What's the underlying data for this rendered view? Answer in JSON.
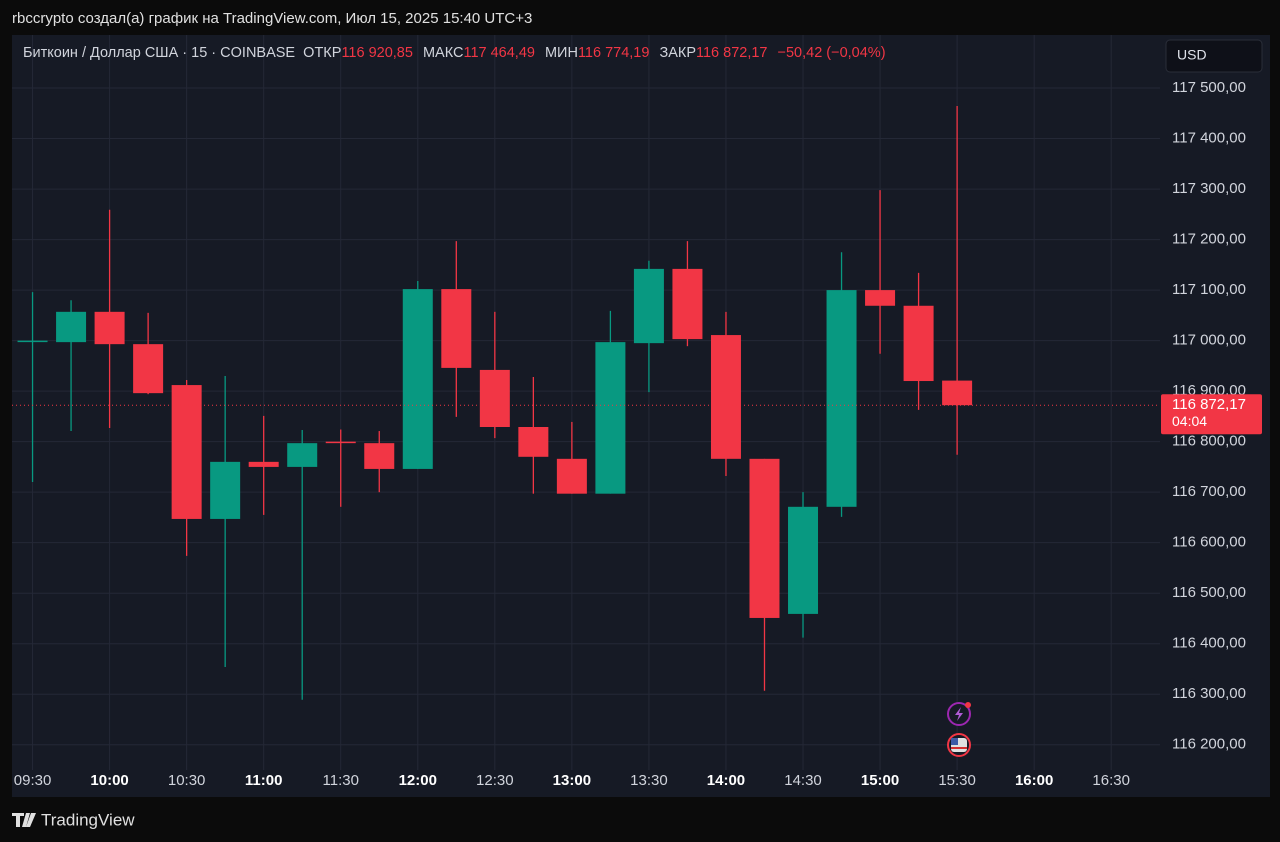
{
  "header": {
    "caption": "rbccrypto создал(а) график на TradingView.com, Июл 15, 2025 15:40 UTC+3",
    "brand": "TradingView"
  },
  "chart_data": {
    "type": "candlestick",
    "symbol": "Биткоин / Доллар США · 15 · COINBASE",
    "ohlc_legend": [
      {
        "label": "ОТКР",
        "value": "116 920,85"
      },
      {
        "label": "МАКС",
        "value": "117 464,49"
      },
      {
        "label": "МИН",
        "value": "116 774,19"
      },
      {
        "label": "ЗАКР",
        "value": "116 872,17"
      }
    ],
    "change": "−50,42 (−0,04%)",
    "currency": "USD",
    "x": [
      "09:30",
      "09:45",
      "10:00",
      "10:15",
      "10:30",
      "10:45",
      "11:00",
      "11:15",
      "11:30",
      "11:45",
      "12:00",
      "12:15",
      "12:30",
      "12:45",
      "13:00",
      "13:15",
      "13:30",
      "13:45",
      "14:00",
      "14:15",
      "14:30",
      "14:45",
      "15:00",
      "15:15",
      "15:30"
    ],
    "open": [
      116998,
      116997,
      117057,
      116993,
      116912,
      116647,
      116760,
      116750,
      116800,
      116797,
      116746,
      117102,
      116942,
      116829,
      116766,
      116697,
      116995,
      117142,
      117011,
      116766,
      116459,
      116671,
      117100,
      117069,
      116920.85
    ],
    "high": [
      117096,
      117080,
      117259,
      117055,
      116922,
      116930,
      116851,
      116823,
      116824,
      116821,
      117118,
      117197,
      117057,
      116928,
      116839,
      117059,
      117158,
      117197,
      117057,
      116766,
      116700,
      117175,
      117298,
      117134,
      117464.49
    ],
    "low": [
      116720,
      116821,
      116827,
      116894,
      116574,
      116354,
      116655,
      116289,
      116671,
      116700,
      116746,
      116849,
      116807,
      116697,
      116697,
      116697,
      116898,
      116989,
      116732,
      116307,
      116412,
      116651,
      116974,
      116863,
      116774.19
    ],
    "close": [
      117000,
      117057,
      116993,
      116896,
      116647,
      116760,
      116750,
      116797,
      116798,
      116746,
      117102,
      116946,
      116829,
      116770,
      116697,
      116997,
      117142,
      117003,
      116766,
      116451,
      116671,
      117100,
      117069,
      116920,
      116872.17
    ],
    "up_color": "#089981",
    "down_color": "#f23645",
    "ylim": [
      116150,
      117605
    ],
    "yticks": [
      {
        "value": 116200,
        "label": "116 200,00"
      },
      {
        "value": 116300,
        "label": "116 300,00"
      },
      {
        "value": 116400,
        "label": "116 400,00"
      },
      {
        "value": 116500,
        "label": "116 500,00"
      },
      {
        "value": 116600,
        "label": "116 600,00"
      },
      {
        "value": 116700,
        "label": "116 700,00"
      },
      {
        "value": 116800,
        "label": "116 800,00"
      },
      {
        "value": 116900,
        "label": "116 900,00"
      },
      {
        "value": 117000,
        "label": "117 000,00"
      },
      {
        "value": 117100,
        "label": "117 100,00"
      },
      {
        "value": 117200,
        "label": "117 200,00"
      },
      {
        "value": 117300,
        "label": "117 300,00"
      },
      {
        "value": 117400,
        "label": "117 400,00"
      },
      {
        "value": 117500,
        "label": "117 500,00"
      }
    ],
    "xlim": [
      "09:22",
      "16:49"
    ],
    "xticks": [
      "09:30",
      "10:00",
      "10:30",
      "11:00",
      "11:30",
      "12:00",
      "12:30",
      "13:00",
      "13:30",
      "14:00",
      "14:30",
      "15:00",
      "15:30",
      "16:00",
      "16:30"
    ],
    "grid": true,
    "last_price_label": "116 872,17",
    "countdown": "04:04"
  }
}
